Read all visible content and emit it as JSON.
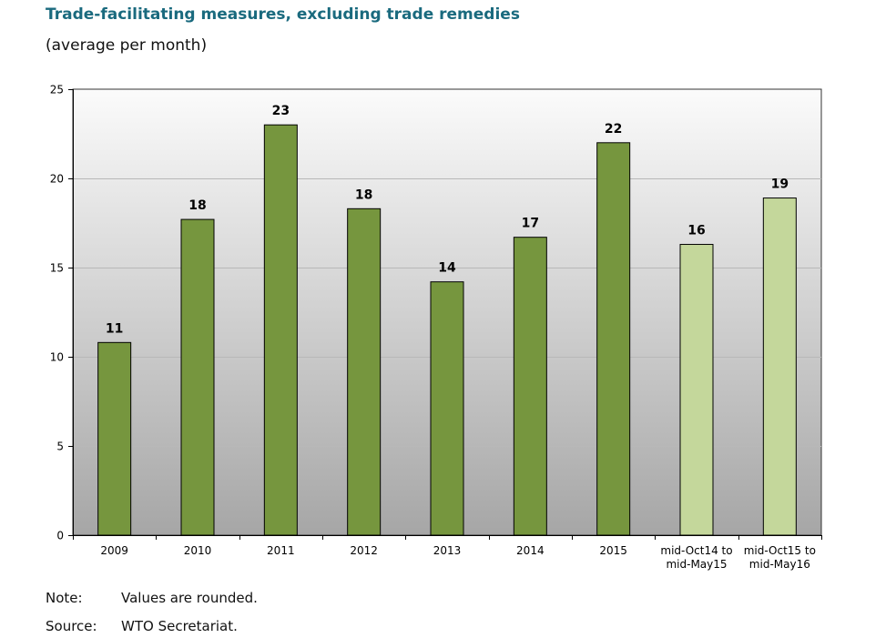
{
  "header": {
    "title": "Trade-facilitating measures, excluding trade remedies",
    "subtitle": "(average per month)"
  },
  "footer": {
    "note_label": "Note:",
    "note_text": "Values are rounded.",
    "source_label": "Source:",
    "source_text": "WTO Secretariat."
  },
  "chart_data": {
    "type": "bar",
    "title": "Trade-facilitating measures, excluding trade remedies",
    "subtitle": "(average per month)",
    "categories": [
      [
        "2009"
      ],
      [
        "2010"
      ],
      [
        "2011"
      ],
      [
        "2012"
      ],
      [
        "2013"
      ],
      [
        "2014"
      ],
      [
        "2015"
      ],
      [
        "mid-Oct14 to",
        "mid-May15"
      ],
      [
        "mid-Oct15 to",
        "mid-May16"
      ]
    ],
    "values": [
      10.8,
      17.7,
      23.0,
      18.3,
      14.2,
      16.7,
      22.0,
      16.3,
      18.9
    ],
    "data_labels": [
      "11",
      "18",
      "23",
      "18",
      "14",
      "17",
      "22",
      "16",
      "19"
    ],
    "bar_colors": [
      "#76963e",
      "#76963e",
      "#76963e",
      "#76963e",
      "#76963e",
      "#76963e",
      "#76963e",
      "#c4d79b",
      "#c4d79b"
    ],
    "ylim": [
      0,
      25
    ],
    "yticks": [
      0,
      5,
      10,
      15,
      20,
      25
    ],
    "xlabel": "",
    "ylabel": "",
    "grid": true,
    "legend": "none"
  }
}
